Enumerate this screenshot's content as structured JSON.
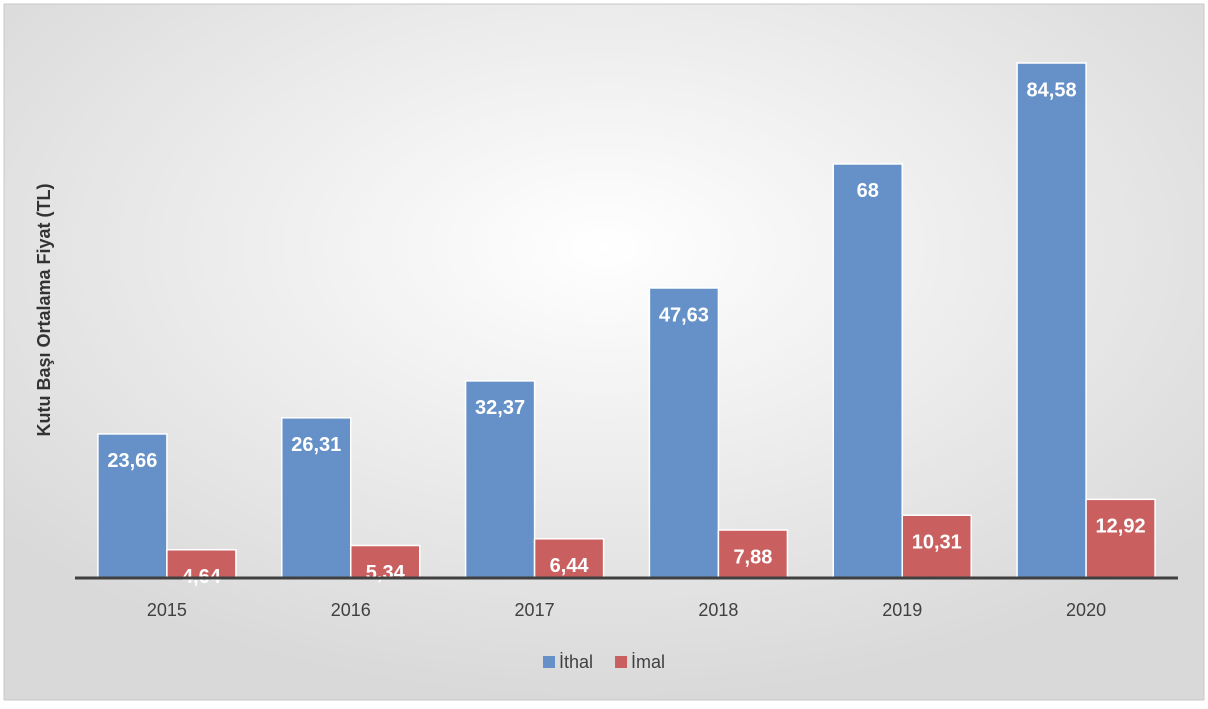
{
  "chart_data": {
    "type": "bar",
    "y_label": "Kutu Başı Ortalama Fiyat (TL)",
    "categories": [
      "2015",
      "2016",
      "2017",
      "2018",
      "2019",
      "2020"
    ],
    "series": [
      {
        "name": "İthal",
        "color": "#6591c8",
        "values": [
          23.66,
          26.31,
          32.37,
          47.63,
          68,
          84.58
        ],
        "value_labels": [
          "23,66",
          "26,31",
          "32,37",
          "47,63",
          "68",
          "84,58"
        ]
      },
      {
        "name": "İmal",
        "color": "#c9605f",
        "values": [
          4.64,
          5.34,
          6.44,
          7.88,
          10.31,
          12.92
        ],
        "value_labels": [
          "4,64",
          "5,34",
          "6,44",
          "7,88",
          "10,31",
          "12,92"
        ]
      }
    ],
    "legend": "bottom"
  }
}
